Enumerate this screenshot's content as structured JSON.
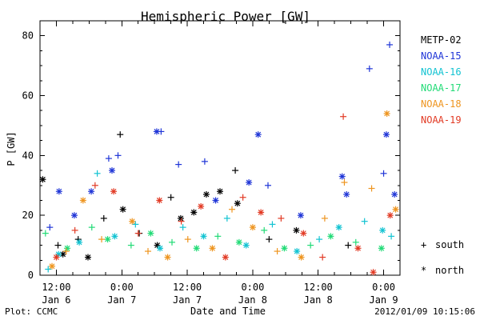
{
  "chart_data": {
    "type": "scatter",
    "title": "Hemispheric Power [GW]",
    "xlabel": "Date and Time",
    "ylabel": "P [GW]",
    "footer_left": "Plot: CCMC",
    "footer_right": "2012/01/09 10:15:06",
    "ylim": [
      0,
      85
    ],
    "grid": false,
    "legend_placement": "right",
    "x_ticks": [
      {
        "line1": "12:00",
        "line2": "Jan 6"
      },
      {
        "line1": "0:00",
        "line2": "Jan 7"
      },
      {
        "line1": "12:00",
        "line2": "Jan 7"
      },
      {
        "line1": "0:00",
        "line2": "Jan 8"
      },
      {
        "line1": "12:00",
        "line2": "Jan 8"
      },
      {
        "line1": "0:00",
        "line2": "Jan 9"
      }
    ],
    "y_ticks": [
      0,
      20,
      40,
      60,
      80
    ],
    "legend": {
      "series": [
        {
          "name": "METP-02",
          "color": "#000000"
        },
        {
          "name": "NOAA-15",
          "color": "#1f35d7"
        },
        {
          "name": "NOAA-16",
          "color": "#12c3d2"
        },
        {
          "name": "NOAA-17",
          "color": "#21db76"
        },
        {
          "name": "NOAA-18",
          "color": "#ee9520"
        },
        {
          "name": "NOAA-19",
          "color": "#e23a24"
        }
      ],
      "marker_legend": [
        {
          "symbol": "+",
          "label": "south"
        },
        {
          "symbol": "*",
          "label": "north"
        }
      ]
    },
    "x_range_hours": [
      -3,
      63
    ],
    "series": [
      {
        "name": "METP-02",
        "color": "#000000",
        "points": [
          {
            "x": -2.5,
            "y": 32,
            "marker": "north"
          },
          {
            "x": 0.3,
            "y": 10,
            "marker": "south"
          },
          {
            "x": 1.2,
            "y": 7,
            "marker": "north"
          },
          {
            "x": 4.0,
            "y": 12,
            "marker": "south"
          },
          {
            "x": 5.8,
            "y": 6,
            "marker": "north"
          },
          {
            "x": 8.7,
            "y": 19,
            "marker": "south"
          },
          {
            "x": 11.7,
            "y": 47,
            "marker": "south"
          },
          {
            "x": 12.2,
            "y": 22,
            "marker": "north"
          },
          {
            "x": 15.2,
            "y": 14,
            "marker": "south"
          },
          {
            "x": 18.5,
            "y": 10,
            "marker": "north"
          },
          {
            "x": 21.0,
            "y": 26,
            "marker": "south"
          },
          {
            "x": 22.8,
            "y": 19,
            "marker": "north"
          },
          {
            "x": 25.2,
            "y": 21,
            "marker": "north"
          },
          {
            "x": 27.5,
            "y": 27,
            "marker": "north"
          },
          {
            "x": 30.0,
            "y": 28,
            "marker": "north"
          },
          {
            "x": 32.8,
            "y": 35,
            "marker": "south"
          },
          {
            "x": 33.2,
            "y": 24,
            "marker": "north"
          },
          {
            "x": 39.0,
            "y": 12,
            "marker": "south"
          },
          {
            "x": 44.0,
            "y": 15,
            "marker": "north"
          },
          {
            "x": 53.5,
            "y": 10,
            "marker": "south"
          }
        ]
      },
      {
        "name": "NOAA-15",
        "color": "#1f35d7",
        "points": [
          {
            "x": -1.2,
            "y": 16,
            "marker": "south"
          },
          {
            "x": 0.5,
            "y": 28,
            "marker": "north"
          },
          {
            "x": 3.3,
            "y": 20,
            "marker": "north"
          },
          {
            "x": 6.4,
            "y": 28,
            "marker": "north"
          },
          {
            "x": 9.6,
            "y": 39,
            "marker": "south"
          },
          {
            "x": 10.2,
            "y": 35,
            "marker": "north"
          },
          {
            "x": 11.3,
            "y": 40,
            "marker": "south"
          },
          {
            "x": 18.4,
            "y": 48,
            "marker": "north"
          },
          {
            "x": 19.2,
            "y": 48,
            "marker": "south"
          },
          {
            "x": 22.4,
            "y": 37,
            "marker": "south"
          },
          {
            "x": 27.2,
            "y": 38,
            "marker": "south"
          },
          {
            "x": 29.2,
            "y": 25,
            "marker": "north"
          },
          {
            "x": 35.3,
            "y": 31,
            "marker": "north"
          },
          {
            "x": 37.0,
            "y": 47,
            "marker": "north"
          },
          {
            "x": 38.8,
            "y": 30,
            "marker": "south"
          },
          {
            "x": 44.8,
            "y": 20,
            "marker": "north"
          },
          {
            "x": 52.4,
            "y": 33,
            "marker": "north"
          },
          {
            "x": 53.2,
            "y": 27,
            "marker": "north"
          },
          {
            "x": 57.4,
            "y": 69,
            "marker": "south"
          },
          {
            "x": 60.0,
            "y": 34,
            "marker": "south"
          },
          {
            "x": 60.5,
            "y": 47,
            "marker": "north"
          },
          {
            "x": 61.1,
            "y": 77,
            "marker": "south"
          },
          {
            "x": 62.0,
            "y": 27,
            "marker": "north"
          }
        ]
      },
      {
        "name": "NOAA-16",
        "color": "#12c3d2",
        "points": [
          {
            "x": -1.5,
            "y": 2,
            "marker": "south"
          },
          {
            "x": 0.4,
            "y": 7,
            "marker": "north"
          },
          {
            "x": 4.2,
            "y": 11,
            "marker": "north"
          },
          {
            "x": 7.5,
            "y": 34,
            "marker": "south"
          },
          {
            "x": 10.7,
            "y": 13,
            "marker": "north"
          },
          {
            "x": 14.5,
            "y": 17,
            "marker": "south"
          },
          {
            "x": 19.0,
            "y": 9,
            "marker": "north"
          },
          {
            "x": 23.2,
            "y": 16,
            "marker": "south"
          },
          {
            "x": 27.0,
            "y": 13,
            "marker": "north"
          },
          {
            "x": 31.3,
            "y": 19,
            "marker": "south"
          },
          {
            "x": 34.8,
            "y": 10,
            "marker": "north"
          },
          {
            "x": 39.6,
            "y": 17,
            "marker": "south"
          },
          {
            "x": 44.1,
            "y": 8,
            "marker": "north"
          },
          {
            "x": 48.2,
            "y": 12,
            "marker": "south"
          },
          {
            "x": 51.8,
            "y": 16,
            "marker": "north"
          },
          {
            "x": 56.5,
            "y": 18,
            "marker": "south"
          },
          {
            "x": 59.8,
            "y": 15,
            "marker": "north"
          },
          {
            "x": 61.4,
            "y": 13,
            "marker": "south"
          }
        ]
      },
      {
        "name": "NOAA-17",
        "color": "#21db76",
        "points": [
          {
            "x": -2.0,
            "y": 14,
            "marker": "south"
          },
          {
            "x": 2.0,
            "y": 9,
            "marker": "north"
          },
          {
            "x": 6.5,
            "y": 16,
            "marker": "south"
          },
          {
            "x": 9.4,
            "y": 12,
            "marker": "north"
          },
          {
            "x": 13.7,
            "y": 10,
            "marker": "south"
          },
          {
            "x": 17.3,
            "y": 14,
            "marker": "north"
          },
          {
            "x": 21.2,
            "y": 11,
            "marker": "south"
          },
          {
            "x": 25.7,
            "y": 9,
            "marker": "north"
          },
          {
            "x": 29.6,
            "y": 13,
            "marker": "south"
          },
          {
            "x": 33.5,
            "y": 11,
            "marker": "north"
          },
          {
            "x": 38.1,
            "y": 15,
            "marker": "south"
          },
          {
            "x": 41.8,
            "y": 9,
            "marker": "north"
          },
          {
            "x": 46.6,
            "y": 10,
            "marker": "south"
          },
          {
            "x": 50.3,
            "y": 13,
            "marker": "north"
          },
          {
            "x": 54.9,
            "y": 11,
            "marker": "south"
          },
          {
            "x": 59.6,
            "y": 9,
            "marker": "north"
          }
        ]
      },
      {
        "name": "NOAA-18",
        "color": "#ee9520",
        "points": [
          {
            "x": -0.8,
            "y": 3,
            "marker": "north"
          },
          {
            "x": 1.8,
            "y": 8,
            "marker": "south"
          },
          {
            "x": 4.9,
            "y": 25,
            "marker": "north"
          },
          {
            "x": 8.3,
            "y": 12,
            "marker": "south"
          },
          {
            "x": 13.9,
            "y": 18,
            "marker": "north"
          },
          {
            "x": 16.8,
            "y": 8,
            "marker": "south"
          },
          {
            "x": 20.4,
            "y": 6,
            "marker": "north"
          },
          {
            "x": 24.1,
            "y": 12,
            "marker": "south"
          },
          {
            "x": 28.6,
            "y": 9,
            "marker": "north"
          },
          {
            "x": 32.2,
            "y": 22,
            "marker": "south"
          },
          {
            "x": 36.0,
            "y": 16,
            "marker": "north"
          },
          {
            "x": 40.5,
            "y": 8,
            "marker": "south"
          },
          {
            "x": 44.9,
            "y": 6,
            "marker": "north"
          },
          {
            "x": 49.2,
            "y": 19,
            "marker": "south"
          },
          {
            "x": 52.8,
            "y": 31,
            "marker": "south"
          },
          {
            "x": 57.8,
            "y": 29,
            "marker": "south"
          },
          {
            "x": 60.6,
            "y": 54,
            "marker": "north"
          },
          {
            "x": 62.2,
            "y": 22,
            "marker": "north"
          }
        ]
      },
      {
        "name": "NOAA-19",
        "color": "#e23a24",
        "points": [
          {
            "x": 0.0,
            "y": 6,
            "marker": "north"
          },
          {
            "x": 3.4,
            "y": 15,
            "marker": "south"
          },
          {
            "x": 7.1,
            "y": 30,
            "marker": "south"
          },
          {
            "x": 10.5,
            "y": 28,
            "marker": "north"
          },
          {
            "x": 15.0,
            "y": 14,
            "marker": "south"
          },
          {
            "x": 18.9,
            "y": 25,
            "marker": "north"
          },
          {
            "x": 22.9,
            "y": 18,
            "marker": "south"
          },
          {
            "x": 26.5,
            "y": 23,
            "marker": "north"
          },
          {
            "x": 31.0,
            "y": 6,
            "marker": "north"
          },
          {
            "x": 34.2,
            "y": 26,
            "marker": "south"
          },
          {
            "x": 37.5,
            "y": 21,
            "marker": "north"
          },
          {
            "x": 41.2,
            "y": 19,
            "marker": "south"
          },
          {
            "x": 45.3,
            "y": 14,
            "marker": "north"
          },
          {
            "x": 48.8,
            "y": 6,
            "marker": "south"
          },
          {
            "x": 52.6,
            "y": 53,
            "marker": "south"
          },
          {
            "x": 55.3,
            "y": 9,
            "marker": "north"
          },
          {
            "x": 58.1,
            "y": 1,
            "marker": "north"
          },
          {
            "x": 61.2,
            "y": 20,
            "marker": "north"
          }
        ]
      }
    ]
  }
}
